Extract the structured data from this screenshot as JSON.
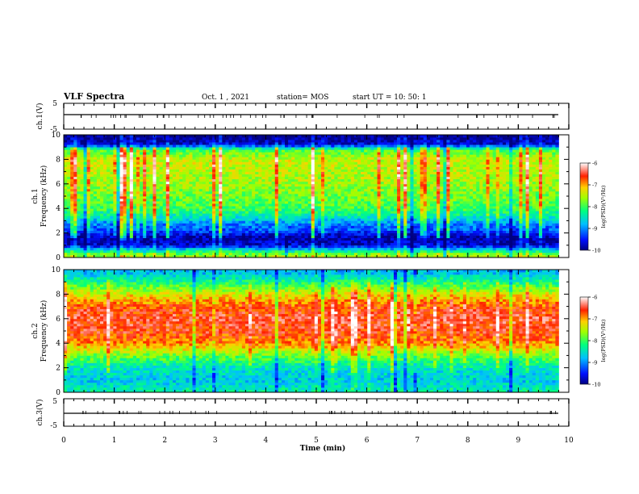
{
  "header": {
    "title": "VLF Spectra",
    "date": "Oct. 1 , 2021",
    "station": "station= MOS",
    "start": "start UT = 10: 50: 1"
  },
  "chart_data": [
    {
      "type": "line",
      "panel": "waveform-top",
      "ylabel": "ch.1(V)",
      "ylim": [
        -5,
        5
      ],
      "ytick_labels": [
        "5",
        "-5"
      ],
      "x": [
        0,
        9.8
      ],
      "values": [
        0,
        0
      ]
    },
    {
      "type": "heatmap",
      "panel": "spectrogram-ch1",
      "ylabel_lines": [
        "ch.1",
        "Frequency (kHz)"
      ],
      "ylim": [
        0,
        10
      ],
      "ytick_labels": [
        "0",
        "2",
        "4",
        "6",
        "8",
        "10"
      ],
      "xlim": [
        0,
        10
      ],
      "data_x_extent": [
        0,
        9.8
      ],
      "colorbar": {
        "tick_labels": [
          "-6",
          "-7",
          "-8",
          "-9",
          "-10"
        ],
        "range": [
          -10,
          -6
        ],
        "label": "log(PSD)(V²/Hz)"
      },
      "frequency_profile_log_psd": [
        {
          "f": 0.2,
          "v": -7.6
        },
        {
          "f": 0.6,
          "v": -8.5
        },
        {
          "f": 1.0,
          "v": -9.7
        },
        {
          "f": 1.6,
          "v": -9.9
        },
        {
          "f": 2.2,
          "v": -9.3
        },
        {
          "f": 2.8,
          "v": -9.0
        },
        {
          "f": 3.4,
          "v": -8.4
        },
        {
          "f": 4.0,
          "v": -8.0
        },
        {
          "f": 5.0,
          "v": -7.8
        },
        {
          "f": 6.0,
          "v": -7.6
        },
        {
          "f": 7.0,
          "v": -7.5
        },
        {
          "f": 8.0,
          "v": -7.4
        },
        {
          "f": 8.8,
          "v": -8.0
        },
        {
          "f": 9.2,
          "v": -9.6
        },
        {
          "f": 9.8,
          "v": -10.0
        }
      ]
    },
    {
      "type": "heatmap",
      "panel": "spectrogram-ch2",
      "ylabel_lines": [
        "ch.2",
        "Frequency (kHz)"
      ],
      "ylim": [
        0,
        10
      ],
      "ytick_labels": [
        "0",
        "2",
        "4",
        "6",
        "8",
        "10"
      ],
      "xlim": [
        0,
        10
      ],
      "data_x_extent": [
        0,
        9.8
      ],
      "colorbar": {
        "tick_labels": [
          "-6",
          "-7",
          "-8",
          "-9",
          "-10"
        ],
        "range": [
          -10,
          -6
        ],
        "label": "log(PSD)(V²/Hz)"
      },
      "frequency_profile_log_psd": [
        {
          "f": 0.2,
          "v": -8.4
        },
        {
          "f": 1.0,
          "v": -8.7
        },
        {
          "f": 2.0,
          "v": -8.5
        },
        {
          "f": 3.0,
          "v": -7.8
        },
        {
          "f": 4.0,
          "v": -6.9
        },
        {
          "f": 5.0,
          "v": -6.6
        },
        {
          "f": 6.0,
          "v": -6.5
        },
        {
          "f": 7.0,
          "v": -6.7
        },
        {
          "f": 8.0,
          "v": -7.3
        },
        {
          "f": 9.0,
          "v": -8.2
        },
        {
          "f": 9.8,
          "v": -8.8
        }
      ]
    },
    {
      "type": "line",
      "panel": "waveform-bottom",
      "ylabel": "ch.3(V)",
      "ylim": [
        -5,
        5
      ],
      "ytick_labels": [
        "5",
        "-5"
      ],
      "x": [
        0,
        9.8
      ],
      "values": [
        0,
        0
      ],
      "xlim": [
        0,
        10
      ],
      "xtick_labels": [
        "0",
        "1",
        "2",
        "3",
        "4",
        "5",
        "6",
        "7",
        "8",
        "9",
        "10"
      ],
      "xlabel": "Time (min)"
    }
  ]
}
